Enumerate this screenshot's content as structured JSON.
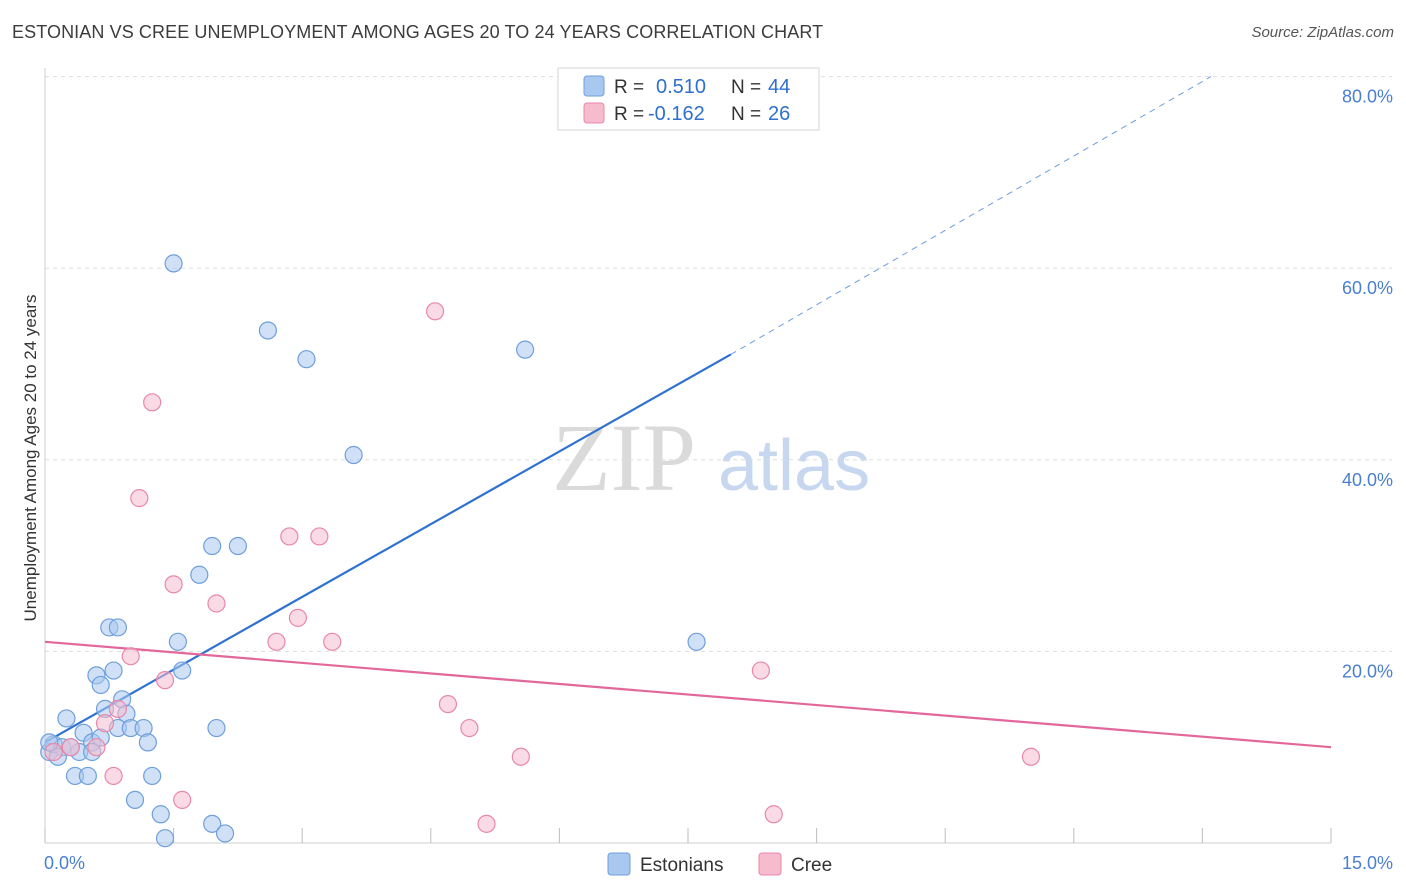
{
  "title": "ESTONIAN VS CREE UNEMPLOYMENT AMONG AGES 20 TO 24 YEARS CORRELATION CHART",
  "source": "Source: ZipAtlas.com",
  "watermark": {
    "zip": "ZIP",
    "atlas": "atlas"
  },
  "colors": {
    "blue_fill": "#a9c8f0",
    "blue_stroke": "#6f9fdc",
    "blue_line": "#2f72d0",
    "pink_fill": "#f6bccd",
    "pink_stroke": "#e888a8",
    "pink_line": "#e2679a",
    "grid": "#dddddd",
    "tick_text": "#4a7fd0"
  },
  "legend": {
    "rows": [
      {
        "r_label": "R =",
        "r_value": "0.510",
        "n_label": "N =",
        "n_value": "44",
        "series": "Estonians"
      },
      {
        "r_label": "R =",
        "r_value": "-0.162",
        "n_label": "N =",
        "n_value": "26",
        "series": "Cree"
      }
    ]
  },
  "bottom_legend": {
    "items": [
      "Estonians",
      "Cree"
    ]
  },
  "chart_data": {
    "type": "scatter",
    "title": "ESTONIAN VS CREE UNEMPLOYMENT AMONG AGES 20 TO 24 YEARS CORRELATION CHART",
    "xlabel": "",
    "ylabel": "Unemployment Among Ages 20 to 24 years",
    "xlim": [
      0,
      15
    ],
    "ylim": [
      0,
      80
    ],
    "x_tick_labels": [
      "0.0%",
      "15.0%"
    ],
    "y_ticks": [
      20,
      40,
      60,
      80
    ],
    "y_tick_labels": [
      "20.0%",
      "40.0%",
      "60.0%",
      "80.0%"
    ],
    "x_ticks": [
      0,
      1.5,
      3,
      4.5,
      6,
      7.5,
      9,
      10.5,
      12,
      13.5,
      15
    ],
    "grid": true,
    "series": [
      {
        "name": "Estonians",
        "color": "#6f9fdc",
        "points": [
          [
            0.05,
            9.5
          ],
          [
            0.1,
            10.3
          ],
          [
            0.2,
            10.0
          ],
          [
            0.25,
            13.0
          ],
          [
            0.35,
            7.0
          ],
          [
            0.4,
            9.5
          ],
          [
            0.45,
            11.5
          ],
          [
            0.5,
            7.0
          ],
          [
            0.55,
            10.5
          ],
          [
            0.6,
            17.5
          ],
          [
            0.65,
            16.5
          ],
          [
            0.7,
            14.0
          ],
          [
            0.75,
            22.5
          ],
          [
            0.8,
            18.0
          ],
          [
            0.85,
            22.5
          ],
          [
            0.85,
            12.0
          ],
          [
            0.9,
            15.0
          ],
          [
            0.95,
            13.5
          ],
          [
            1.0,
            12.0
          ],
          [
            1.05,
            4.5
          ],
          [
            1.15,
            12.0
          ],
          [
            1.2,
            10.5
          ],
          [
            1.25,
            7.0
          ],
          [
            1.35,
            3.0
          ],
          [
            1.4,
            0.5
          ],
          [
            1.5,
            60.5
          ],
          [
            1.55,
            21.0
          ],
          [
            1.6,
            18.0
          ],
          [
            1.8,
            28.0
          ],
          [
            1.95,
            31.0
          ],
          [
            1.95,
            2.0
          ],
          [
            2.0,
            12.0
          ],
          [
            2.1,
            1.0
          ],
          [
            2.25,
            31.0
          ],
          [
            2.6,
            53.5
          ],
          [
            3.05,
            50.5
          ],
          [
            3.6,
            40.5
          ],
          [
            5.6,
            51.5
          ],
          [
            7.6,
            21.0
          ],
          [
            0.05,
            10.5
          ],
          [
            0.15,
            9.0
          ],
          [
            0.3,
            10.0
          ],
          [
            0.55,
            9.5
          ],
          [
            0.65,
            11.0
          ]
        ]
      },
      {
        "name": "Cree",
        "color": "#e888a8",
        "points": [
          [
            0.1,
            9.5
          ],
          [
            0.3,
            10.0
          ],
          [
            0.6,
            10.0
          ],
          [
            0.7,
            12.5
          ],
          [
            0.85,
            14.0
          ],
          [
            0.8,
            7.0
          ],
          [
            1.0,
            19.5
          ],
          [
            1.1,
            36.0
          ],
          [
            1.25,
            46.0
          ],
          [
            1.4,
            17.0
          ],
          [
            1.5,
            27.0
          ],
          [
            1.6,
            4.5
          ],
          [
            2.0,
            25.0
          ],
          [
            2.7,
            21.0
          ],
          [
            2.85,
            32.0
          ],
          [
            2.95,
            23.5
          ],
          [
            3.2,
            32.0
          ],
          [
            3.35,
            21.0
          ],
          [
            4.55,
            55.5
          ],
          [
            4.7,
            14.5
          ],
          [
            4.95,
            12.0
          ],
          [
            5.15,
            2.0
          ],
          [
            5.55,
            9.0
          ],
          [
            8.35,
            18.0
          ],
          [
            8.5,
            3.0
          ],
          [
            11.5,
            9.0
          ]
        ]
      }
    ],
    "trend_lines": [
      {
        "series": "Estonians",
        "solid": [
          [
            0.0,
            10.5
          ],
          [
            8.0,
            51.0
          ]
        ],
        "dashed": [
          [
            8.0,
            51.0
          ],
          [
            13.6,
            80.0
          ]
        ]
      },
      {
        "series": "Cree",
        "solid": [
          [
            0.0,
            21.0
          ],
          [
            15.0,
            10.0
          ]
        ]
      }
    ]
  }
}
